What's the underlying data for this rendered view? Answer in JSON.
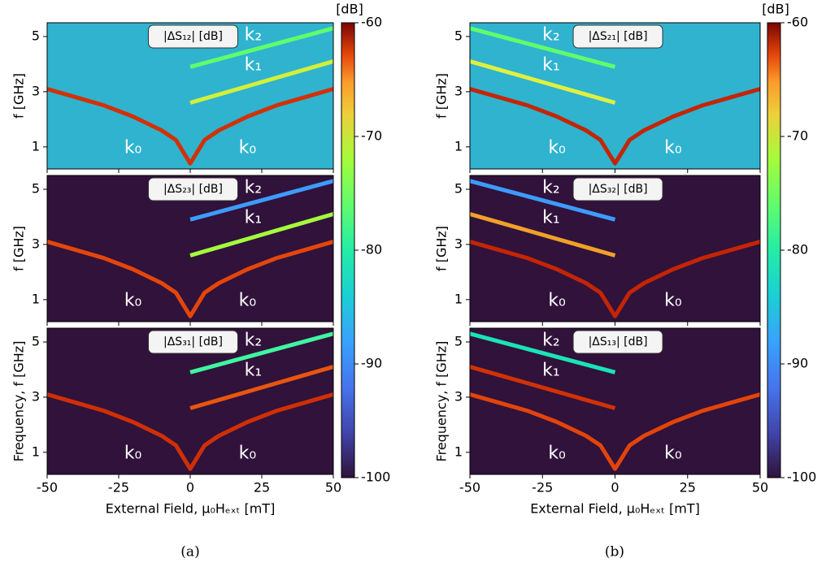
{
  "chart_data": [
    {
      "type": "line",
      "title": "|ΔS₁₂| [dB]",
      "ylabel": "f [GHz]",
      "background": "#2fb3cf",
      "x": [
        -50,
        -40,
        -30,
        -20,
        -10,
        -5,
        0,
        5,
        10,
        20,
        30,
        40,
        50
      ],
      "xlim": [
        -50,
        50
      ],
      "xticks": [
        -50,
        -25,
        0,
        25,
        50
      ],
      "ylim": [
        0.2,
        5.5
      ],
      "yticks": [
        1,
        3,
        5
      ],
      "series": [
        {
          "name": "k₀",
          "color": "#d23105",
          "values": [
            3.1,
            2.8,
            2.5,
            2.1,
            1.6,
            1.25,
            0.4,
            1.25,
            1.6,
            2.1,
            2.5,
            2.8,
            3.1
          ]
        },
        {
          "name": "k₁",
          "color": "#d2f03a",
          "values": [
            null,
            null,
            null,
            null,
            null,
            null,
            2.6,
            2.75,
            2.9,
            3.2,
            3.5,
            3.8,
            4.1
          ]
        },
        {
          "name": "k₂",
          "color": "#61fc6c",
          "values": [
            null,
            null,
            null,
            null,
            null,
            null,
            3.9,
            4.04,
            4.18,
            4.46,
            4.74,
            5.02,
            5.3
          ]
        }
      ]
    },
    {
      "type": "line",
      "title": "|ΔS₂₃| [dB]",
      "ylabel": "f [GHz]",
      "background": "#30123b",
      "x": [
        -50,
        -40,
        -30,
        -20,
        -10,
        -5,
        0,
        5,
        10,
        20,
        30,
        40,
        50
      ],
      "xlim": [
        -50,
        50
      ],
      "xticks": [
        -50,
        -25,
        0,
        25,
        50
      ],
      "ylim": [
        0.2,
        5.5
      ],
      "yticks": [
        1,
        3,
        5
      ],
      "series": [
        {
          "name": "k₀",
          "color": "#e4460a",
          "values": [
            3.1,
            2.8,
            2.5,
            2.1,
            1.6,
            1.25,
            0.4,
            1.25,
            1.6,
            2.1,
            2.5,
            2.8,
            3.1
          ]
        },
        {
          "name": "k₁",
          "color": "#a4fc3c",
          "values": [
            null,
            null,
            null,
            null,
            null,
            null,
            2.6,
            2.75,
            2.9,
            3.2,
            3.5,
            3.8,
            4.1
          ]
        },
        {
          "name": "k₂",
          "color": "#3e9bfe",
          "values": [
            null,
            null,
            null,
            null,
            null,
            null,
            3.9,
            4.04,
            4.18,
            4.46,
            4.74,
            5.02,
            5.3
          ]
        }
      ]
    },
    {
      "type": "line",
      "title": "|ΔS₃₁| [dB]",
      "ylabel": "Frequency, f [GHz]",
      "xlabel": "External Field, μ₀Hₑₓₜ [mT]",
      "background": "#30123b",
      "x": [
        -50,
        -40,
        -30,
        -20,
        -10,
        -5,
        0,
        5,
        10,
        20,
        30,
        40,
        50
      ],
      "xlim": [
        -50,
        50
      ],
      "xticks": [
        -50,
        -25,
        0,
        25,
        50
      ],
      "ylim": [
        0.2,
        5.5
      ],
      "yticks": [
        1,
        3,
        5
      ],
      "series": [
        {
          "name": "k₀",
          "color": "#d02f05",
          "values": [
            3.1,
            2.8,
            2.5,
            2.1,
            1.6,
            1.25,
            0.4,
            1.25,
            1.6,
            2.1,
            2.5,
            2.8,
            3.1
          ]
        },
        {
          "name": "k₁",
          "color": "#e8560f",
          "values": [
            null,
            null,
            null,
            null,
            null,
            null,
            2.6,
            2.75,
            2.9,
            3.2,
            3.5,
            3.8,
            4.1
          ]
        },
        {
          "name": "k₂",
          "color": "#40f5a0",
          "values": [
            null,
            null,
            null,
            null,
            null,
            null,
            3.9,
            4.04,
            4.18,
            4.46,
            4.74,
            5.02,
            5.3
          ]
        }
      ]
    },
    {
      "type": "line",
      "title": "|ΔS₂₁| [dB]",
      "ylabel": "f [GHz]",
      "background": "#2fb3cf",
      "x": [
        -50,
        -40,
        -30,
        -20,
        -10,
        -5,
        0,
        5,
        10,
        20,
        30,
        40,
        50
      ],
      "xlim": [
        -50,
        50
      ],
      "xticks": [
        -50,
        -25,
        0,
        25,
        50
      ],
      "ylim": [
        0.2,
        5.5
      ],
      "yticks": [
        1,
        3,
        5
      ],
      "series": [
        {
          "name": "k₀",
          "color": "#c42503",
          "values": [
            3.1,
            2.8,
            2.5,
            2.1,
            1.6,
            1.25,
            0.4,
            1.25,
            1.6,
            2.1,
            2.5,
            2.8,
            3.1
          ]
        },
        {
          "name": "k₁",
          "color": "#e0f040",
          "values": [
            4.1,
            3.8,
            3.5,
            3.2,
            2.9,
            2.75,
            2.6,
            null,
            null,
            null,
            null,
            null,
            null
          ]
        },
        {
          "name": "k₂",
          "color": "#61fc6c",
          "values": [
            5.3,
            5.02,
            4.74,
            4.46,
            4.18,
            4.04,
            3.9,
            null,
            null,
            null,
            null,
            null,
            null
          ]
        }
      ]
    },
    {
      "type": "line",
      "title": "|ΔS₃₂| [dB]",
      "ylabel": "f [GHz]",
      "background": "#30123b",
      "x": [
        -50,
        -40,
        -30,
        -20,
        -10,
        -5,
        0,
        5,
        10,
        20,
        30,
        40,
        50
      ],
      "xlim": [
        -50,
        50
      ],
      "xticks": [
        -50,
        -25,
        0,
        25,
        50
      ],
      "ylim": [
        0.2,
        5.5
      ],
      "yticks": [
        1,
        3,
        5
      ],
      "series": [
        {
          "name": "k₀",
          "color": "#c42503",
          "values": [
            3.1,
            2.8,
            2.5,
            2.1,
            1.6,
            1.25,
            0.4,
            1.25,
            1.6,
            2.1,
            2.5,
            2.8,
            3.1
          ]
        },
        {
          "name": "k₁",
          "color": "#f1a028",
          "values": [
            4.1,
            3.8,
            3.5,
            3.2,
            2.9,
            2.75,
            2.6,
            null,
            null,
            null,
            null,
            null,
            null
          ]
        },
        {
          "name": "k₂",
          "color": "#3e9bfe",
          "values": [
            5.3,
            5.02,
            4.74,
            4.46,
            4.18,
            4.04,
            3.9,
            null,
            null,
            null,
            null,
            null,
            null
          ]
        }
      ]
    },
    {
      "type": "line",
      "title": "|ΔS₁₃| [dB]",
      "ylabel": "Frequency, f [GHz]",
      "xlabel": "External Field, μ₀Hₑₓₜ [mT]",
      "background": "#30123b",
      "x": [
        -50,
        -40,
        -30,
        -20,
        -10,
        -5,
        0,
        5,
        10,
        20,
        30,
        40,
        50
      ],
      "xlim": [
        -50,
        50
      ],
      "xticks": [
        -50,
        -25,
        0,
        25,
        50
      ],
      "ylim": [
        0.2,
        5.5
      ],
      "yticks": [
        1,
        3,
        5
      ],
      "series": [
        {
          "name": "k₀",
          "color": "#e3440a",
          "values": [
            3.1,
            2.8,
            2.5,
            2.1,
            1.6,
            1.25,
            0.4,
            1.25,
            1.6,
            2.1,
            2.5,
            2.8,
            3.1
          ]
        },
        {
          "name": "k₁",
          "color": "#d23105",
          "values": [
            4.1,
            3.8,
            3.5,
            3.2,
            2.9,
            2.75,
            2.6,
            null,
            null,
            null,
            null,
            null,
            null
          ]
        },
        {
          "name": "k₂",
          "color": "#1ae4b6",
          "values": [
            5.3,
            5.02,
            4.74,
            4.46,
            4.18,
            4.04,
            3.9,
            null,
            null,
            null,
            null,
            null,
            null
          ]
        }
      ]
    }
  ],
  "colorbars": [
    {
      "label": "[dB]",
      "lim": [
        -100,
        -60
      ],
      "ticks": [
        -100,
        -90,
        -80,
        -70,
        -60
      ]
    },
    {
      "label": "[dB]",
      "lim": [
        -100,
        -60
      ],
      "ticks": [
        -100,
        -90,
        -80,
        -70,
        -60
      ]
    }
  ],
  "captions": [
    "(a)",
    "(b)"
  ]
}
